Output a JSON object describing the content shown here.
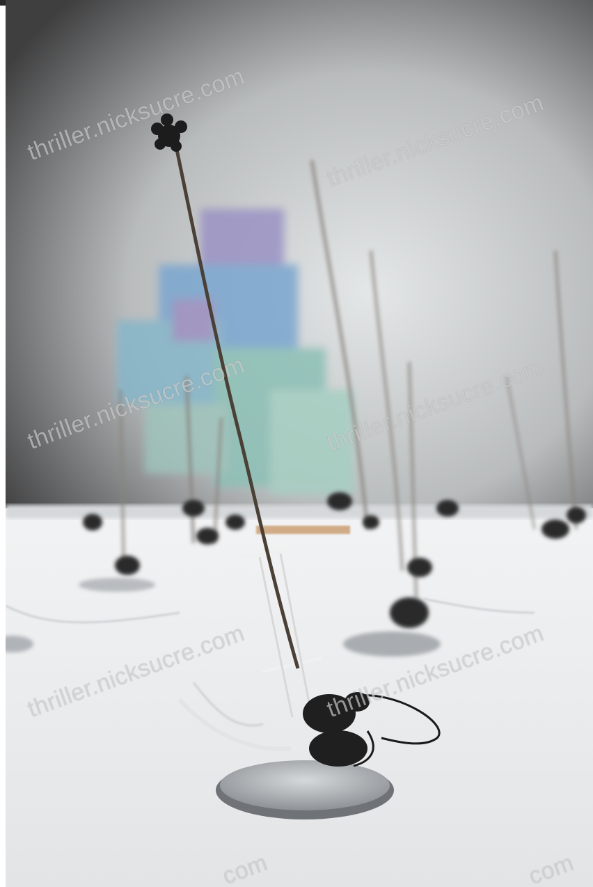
{
  "watermark": {
    "text": "thriller.nicksucre.com",
    "tail": "com"
  },
  "colors": {
    "wall_dark": "#4a4a4a",
    "wall_light": "#d9dcdc",
    "floor": "#e9ebec",
    "projection_teal": "#7fb8b2",
    "projection_blue": "#6fa0c8",
    "projection_purple": "#8e86b8"
  }
}
